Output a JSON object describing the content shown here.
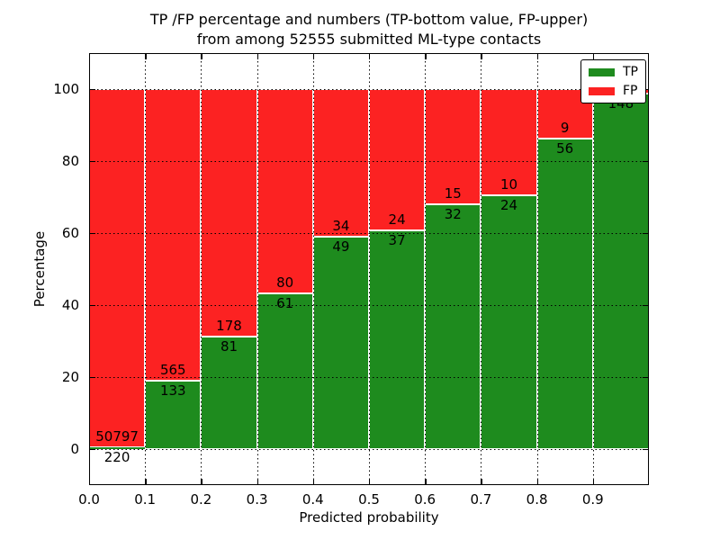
{
  "figure": {
    "title_line1": "TP /FP percentage and numbers (TP-bottom value, FP-upper)",
    "title_line2": "from among 52555 submitted ML-type contacts",
    "background": "#ffffff",
    "frame_color": "#000000"
  },
  "chart_data": {
    "type": "bar",
    "stacked": true,
    "normalized_percent": true,
    "title": "TP /FP percentage and numbers (TP-bottom value, FP-upper)\nfrom among 52555 submitted ML-type contacts",
    "xlabel": "Predicted probability",
    "ylabel": "Percentage",
    "xlim": [
      0.0,
      1.0
    ],
    "ylim": [
      -10,
      110
    ],
    "xticks": [
      "0.0",
      "0.1",
      "0.2",
      "0.3",
      "0.4",
      "0.5",
      "0.6",
      "0.7",
      "0.8",
      "0.9"
    ],
    "yticks": [
      "0",
      "20",
      "40",
      "60",
      "80",
      "100"
    ],
    "ytick_values": [
      0,
      20,
      40,
      60,
      80,
      100
    ],
    "grid": "dotted",
    "bar_edge_color": "#ffffff",
    "legend": {
      "position": "upper-right",
      "items": [
        {
          "label": "TP",
          "color": "#1e8b1e"
        },
        {
          "label": "FP",
          "color": "#fc2222"
        }
      ]
    },
    "series": [
      {
        "name": "TP",
        "color": "#1e8b1e",
        "position": "bottom"
      },
      {
        "name": "FP",
        "color": "#fc2222",
        "position": "top"
      }
    ],
    "bars": [
      {
        "x_start": 0.0,
        "x_end": 0.1,
        "tp": 220,
        "fp": 50797,
        "tp_pct": 0.43
      },
      {
        "x_start": 0.1,
        "x_end": 0.2,
        "tp": 133,
        "fp": 565,
        "tp_pct": 19.05
      },
      {
        "x_start": 0.2,
        "x_end": 0.3,
        "tp": 81,
        "fp": 178,
        "tp_pct": 31.27
      },
      {
        "x_start": 0.3,
        "x_end": 0.4,
        "tp": 61,
        "fp": 80,
        "tp_pct": 43.26
      },
      {
        "x_start": 0.4,
        "x_end": 0.5,
        "tp": 49,
        "fp": 34,
        "tp_pct": 59.04
      },
      {
        "x_start": 0.5,
        "x_end": 0.6,
        "tp": 37,
        "fp": 24,
        "tp_pct": 60.66
      },
      {
        "x_start": 0.6,
        "x_end": 0.7,
        "tp": 32,
        "fp": 15,
        "tp_pct": 68.09
      },
      {
        "x_start": 0.7,
        "x_end": 0.8,
        "tp": 24,
        "fp": 10,
        "tp_pct": 70.59
      },
      {
        "x_start": 0.8,
        "x_end": 0.9,
        "tp": 56,
        "fp": 9,
        "tp_pct": 86.15
      },
      {
        "x_start": 0.9,
        "x_end": 1.0,
        "tp": 148,
        "fp": null,
        "tp_pct": 98.67
      }
    ]
  }
}
